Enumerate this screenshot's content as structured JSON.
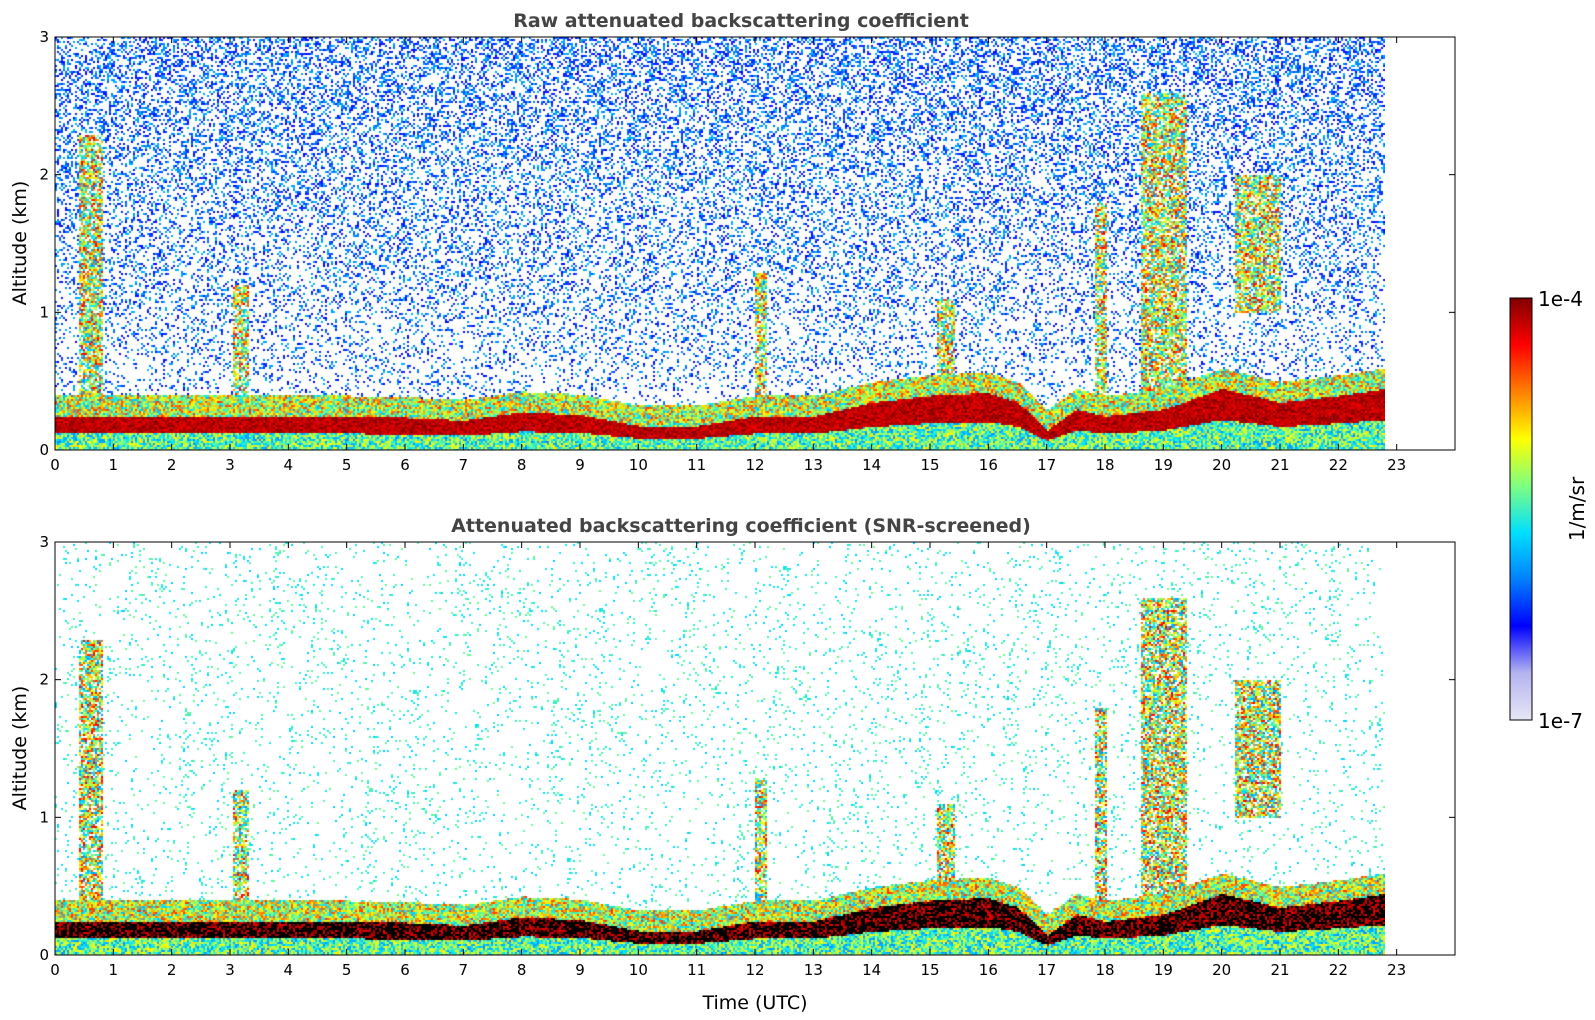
{
  "chart_data": [
    {
      "type": "heatmap",
      "title": "Raw attenuated backscattering coefficient",
      "xlabel": "",
      "ylabel": "Altitude (km)",
      "xlim": [
        0,
        24
      ],
      "ylim": [
        0,
        3
      ],
      "xticks": [
        0,
        1,
        2,
        3,
        4,
        5,
        6,
        7,
        8,
        9,
        10,
        11,
        12,
        13,
        14,
        15,
        16,
        17,
        18,
        19,
        20,
        21,
        22,
        23
      ],
      "yticks": [
        0,
        1,
        2,
        3
      ],
      "data_end_hour": 22.8,
      "screened": false,
      "boundary_layer_top_km": [
        [
          0,
          0.25
        ],
        [
          1,
          0.25
        ],
        [
          2,
          0.25
        ],
        [
          3,
          0.25
        ],
        [
          4,
          0.25
        ],
        [
          5,
          0.25
        ],
        [
          6,
          0.24
        ],
        [
          7,
          0.22
        ],
        [
          8,
          0.28
        ],
        [
          9,
          0.26
        ],
        [
          10,
          0.18
        ],
        [
          11,
          0.18
        ],
        [
          12,
          0.25
        ],
        [
          13,
          0.25
        ],
        [
          14,
          0.35
        ],
        [
          15,
          0.4
        ],
        [
          16,
          0.42
        ],
        [
          16.5,
          0.35
        ],
        [
          17,
          0.15
        ],
        [
          17.5,
          0.3
        ],
        [
          18,
          0.25
        ],
        [
          19,
          0.3
        ],
        [
          20,
          0.45
        ],
        [
          21,
          0.35
        ],
        [
          22,
          0.4
        ],
        [
          22.8,
          0.45
        ]
      ],
      "cloud_features": [
        {
          "start": 0.4,
          "end": 0.8,
          "bottom": 0.3,
          "top": 2.3
        },
        {
          "start": 3.05,
          "end": 3.3,
          "bottom": 0.3,
          "top": 1.2
        },
        {
          "start": 12.0,
          "end": 12.2,
          "bottom": 0.3,
          "top": 1.3
        },
        {
          "start": 15.1,
          "end": 15.4,
          "bottom": 0.3,
          "top": 1.1
        },
        {
          "start": 17.8,
          "end": 18.0,
          "bottom": 0.3,
          "top": 1.8
        },
        {
          "start": 18.6,
          "end": 19.4,
          "bottom": 0.3,
          "top": 2.6
        },
        {
          "start": 20.2,
          "end": 21.0,
          "bottom": 1.0,
          "top": 2.0
        }
      ]
    },
    {
      "type": "heatmap",
      "title": "Attenuated backscattering coefficient (SNR-screened)",
      "xlabel": "Time (UTC)",
      "ylabel": "Altitude (km)",
      "xlim": [
        0,
        24
      ],
      "ylim": [
        0,
        3
      ],
      "xticks": [
        0,
        1,
        2,
        3,
        4,
        5,
        6,
        7,
        8,
        9,
        10,
        11,
        12,
        13,
        14,
        15,
        16,
        17,
        18,
        19,
        20,
        21,
        22,
        23
      ],
      "yticks": [
        0,
        1,
        2,
        3
      ],
      "data_end_hour": 22.8,
      "screened": true
    }
  ],
  "colorbar": {
    "label": "1/m/sr",
    "max_label": "1e-4",
    "min_label": "1e-7",
    "colormap": "jet",
    "colors": [
      "#e6e6f5",
      "#b4b4f0",
      "#0000ff",
      "#0080ff",
      "#00e0ff",
      "#7fff7f",
      "#ffff00",
      "#ff8000",
      "#ff0000",
      "#800000"
    ]
  }
}
